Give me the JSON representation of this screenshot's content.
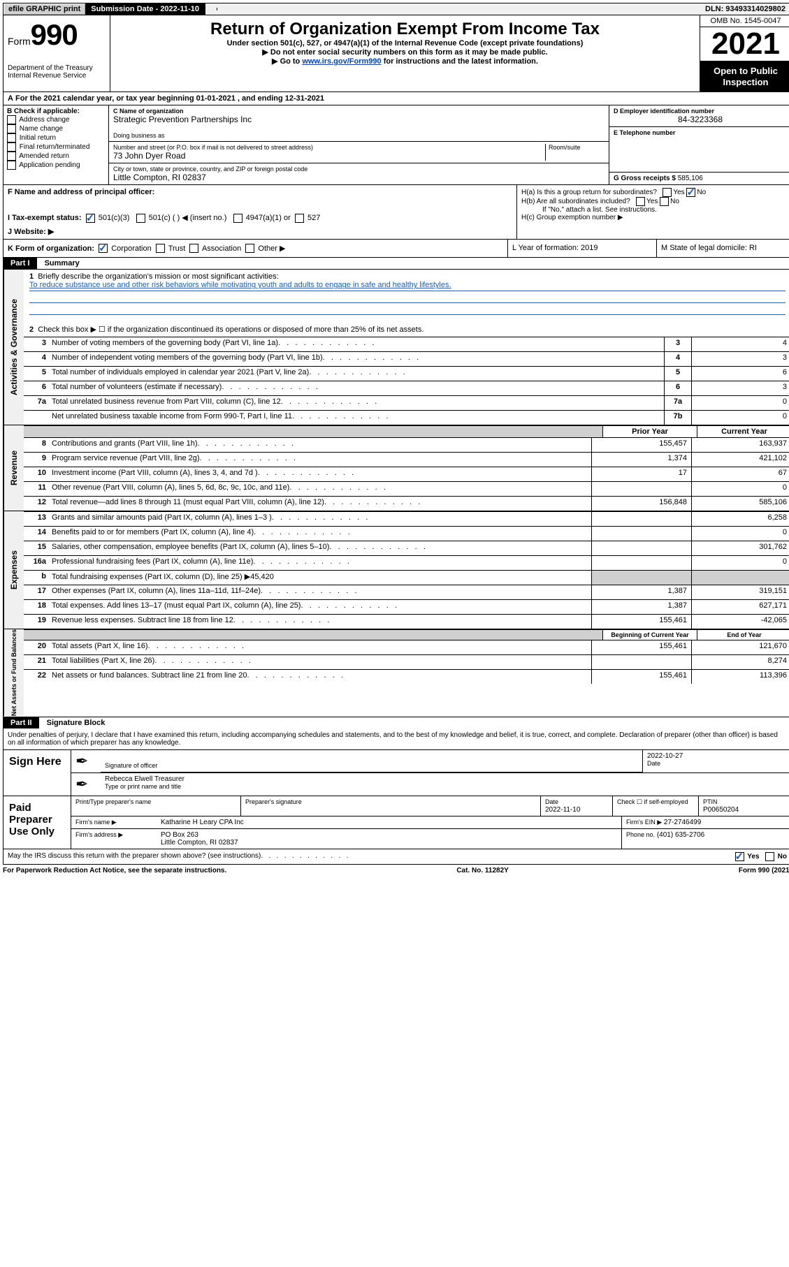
{
  "topbar": {
    "efile": "efile GRAPHIC print",
    "submission_label": "Submission Date - 2022-11-10",
    "dln": "DLN: 93493314029802"
  },
  "header": {
    "form_prefix": "Form",
    "form_number": "990",
    "dept": "Department of the Treasury",
    "irs": "Internal Revenue Service",
    "title": "Return of Organization Exempt From Income Tax",
    "subtitle": "Under section 501(c), 527, or 4947(a)(1) of the Internal Revenue Code (except private foundations)",
    "instr1": "▶ Do not enter social security numbers on this form as it may be made public.",
    "instr2_pre": "▶ Go to ",
    "instr2_link": "www.irs.gov/Form990",
    "instr2_post": " for instructions and the latest information.",
    "omb": "OMB No. 1545-0047",
    "year": "2021",
    "open": "Open to Public Inspection"
  },
  "A": {
    "text": "For the 2021 calendar year, or tax year beginning 01-01-2021   , and ending 12-31-2021"
  },
  "B": {
    "label": "B Check if applicable:",
    "opts": [
      "Address change",
      "Name change",
      "Initial return",
      "Final return/terminated",
      "Amended return",
      "Application pending"
    ]
  },
  "C": {
    "name_label": "C Name of organization",
    "name": "Strategic Prevention Partnerships Inc",
    "dba_label": "Doing business as",
    "addr_label": "Number and street (or P.O. box if mail is not delivered to street address)",
    "room_label": "Room/suite",
    "addr": "73 John Dyer Road",
    "city_label": "City or town, state or province, country, and ZIP or foreign postal code",
    "city": "Little Compton, RI  02837"
  },
  "D": {
    "label": "D Employer identification number",
    "value": "84-3223368"
  },
  "E": {
    "label": "E Telephone number"
  },
  "G": {
    "label": "G Gross receipts $",
    "value": "585,106"
  },
  "F": {
    "label": "F  Name and address of principal officer:"
  },
  "H": {
    "a": "H(a)  Is this a group return for subordinates?",
    "b": "H(b)  Are all subordinates included?",
    "ifno": "If \"No,\" attach a list. See instructions.",
    "c": "H(c)  Group exemption number ▶",
    "yes": "Yes",
    "no": "No"
  },
  "I": {
    "label": "I   Tax-exempt status:",
    "o1": "501(c)(3)",
    "o2": "501(c) (  ) ◀ (insert no.)",
    "o3": "4947(a)(1) or",
    "o4": "527"
  },
  "J": {
    "label": "J   Website: ▶"
  },
  "K": {
    "label": "K Form of organization:",
    "o1": "Corporation",
    "o2": "Trust",
    "o3": "Association",
    "o4": "Other ▶"
  },
  "L": {
    "label": "L Year of formation: 2019"
  },
  "M": {
    "label": "M State of legal domicile: RI"
  },
  "part1": {
    "header": "Part I",
    "title": "Summary",
    "line1_label": "Briefly describe the organization's mission or most significant activities:",
    "mission": "To reduce substance use and other risk behaviors while motivating youth and adults to engage in safe and healthy lifestyles.",
    "line2": "Check this box ▶ ☐  if the organization discontinued its operations or disposed of more than 25% of its net assets.",
    "lines_ag": [
      {
        "n": "3",
        "d": "Number of voting members of the governing body (Part VI, line 1a)",
        "box": "3",
        "v": "4"
      },
      {
        "n": "4",
        "d": "Number of independent voting members of the governing body (Part VI, line 1b)",
        "box": "4",
        "v": "3"
      },
      {
        "n": "5",
        "d": "Total number of individuals employed in calendar year 2021 (Part V, line 2a)",
        "box": "5",
        "v": "6"
      },
      {
        "n": "6",
        "d": "Total number of volunteers (estimate if necessary)",
        "box": "6",
        "v": "3"
      },
      {
        "n": "7a",
        "d": "Total unrelated business revenue from Part VIII, column (C), line 12",
        "box": "7a",
        "v": "0"
      },
      {
        "n": "",
        "d": "Net unrelated business taxable income from Form 990-T, Part I, line 11",
        "box": "7b",
        "v": "0"
      }
    ],
    "prior_head": "Prior Year",
    "current_head": "Current Year",
    "rev": [
      {
        "n": "8",
        "d": "Contributions and grants (Part VIII, line 1h)",
        "p": "155,457",
        "c": "163,937"
      },
      {
        "n": "9",
        "d": "Program service revenue (Part VIII, line 2g)",
        "p": "1,374",
        "c": "421,102"
      },
      {
        "n": "10",
        "d": "Investment income (Part VIII, column (A), lines 3, 4, and 7d )",
        "p": "17",
        "c": "67"
      },
      {
        "n": "11",
        "d": "Other revenue (Part VIII, column (A), lines 5, 6d, 8c, 9c, 10c, and 11e)",
        "p": "",
        "c": "0"
      },
      {
        "n": "12",
        "d": "Total revenue—add lines 8 through 11 (must equal Part VIII, column (A), line 12)",
        "p": "156,848",
        "c": "585,106"
      }
    ],
    "exp": [
      {
        "n": "13",
        "d": "Grants and similar amounts paid (Part IX, column (A), lines 1–3 )",
        "p": "",
        "c": "6,258"
      },
      {
        "n": "14",
        "d": "Benefits paid to or for members (Part IX, column (A), line 4)",
        "p": "",
        "c": "0"
      },
      {
        "n": "15",
        "d": "Salaries, other compensation, employee benefits (Part IX, column (A), lines 5–10)",
        "p": "",
        "c": "301,762"
      },
      {
        "n": "16a",
        "d": "Professional fundraising fees (Part IX, column (A), line 11e)",
        "p": "",
        "c": "0"
      }
    ],
    "line_b": "Total fundraising expenses (Part IX, column (D), line 25) ▶45,420",
    "exp2": [
      {
        "n": "17",
        "d": "Other expenses (Part IX, column (A), lines 11a–11d, 11f–24e)",
        "p": "1,387",
        "c": "319,151"
      },
      {
        "n": "18",
        "d": "Total expenses. Add lines 13–17 (must equal Part IX, column (A), line 25)",
        "p": "1,387",
        "c": "627,171"
      },
      {
        "n": "19",
        "d": "Revenue less expenses. Subtract line 18 from line 12",
        "p": "155,461",
        "c": "-42,065"
      }
    ],
    "bal_head1": "Beginning of Current Year",
    "bal_head2": "End of Year",
    "bal": [
      {
        "n": "20",
        "d": "Total assets (Part X, line 16)",
        "p": "155,461",
        "c": "121,670"
      },
      {
        "n": "21",
        "d": "Total liabilities (Part X, line 26)",
        "p": "",
        "c": "8,274"
      },
      {
        "n": "22",
        "d": "Net assets or fund balances. Subtract line 21 from line 20",
        "p": "155,461",
        "c": "113,396"
      }
    ],
    "side_ag": "Activities & Governance",
    "side_rev": "Revenue",
    "side_exp": "Expenses",
    "side_bal": "Net Assets or Fund Balances"
  },
  "part2": {
    "header": "Part II",
    "title": "Signature Block",
    "penalties": "Under penalties of perjury, I declare that I have examined this return, including accompanying schedules and statements, and to the best of my knowledge and belief, it is true, correct, and complete. Declaration of preparer (other than officer) is based on all information of which preparer has any knowledge.",
    "sign_here": "Sign Here",
    "sig_officer": "Signature of officer",
    "date_label": "Date",
    "date_val": "2022-10-27",
    "officer_name": "Rebecca Elwell Treasurer",
    "type_name": "Type or print name and title",
    "paid": "Paid Preparer Use Only",
    "prep_name_label": "Print/Type preparer's name",
    "prep_sig_label": "Preparer's signature",
    "prep_date_label": "Date",
    "prep_date": "2022-11-10",
    "check_self": "Check ☐ if self-employed",
    "ptin_label": "PTIN",
    "ptin": "P00650204",
    "firm_name_label": "Firm's name    ▶",
    "firm_name": "Katharine H Leary CPA Inc",
    "firm_ein_label": "Firm's EIN ▶",
    "firm_ein": "27-2746499",
    "firm_addr_label": "Firm's address ▶",
    "firm_addr1": "PO Box 263",
    "firm_addr2": "Little Compton, RI  02837",
    "phone_label": "Phone no.",
    "phone": "(401) 635-2706",
    "may_irs": "May the IRS discuss this return with the preparer shown above? (see instructions)",
    "yes": "Yes",
    "no": "No"
  },
  "footer": {
    "pra": "For Paperwork Reduction Act Notice, see the separate instructions.",
    "cat": "Cat. No. 11282Y",
    "form": "Form 990 (2021)"
  }
}
